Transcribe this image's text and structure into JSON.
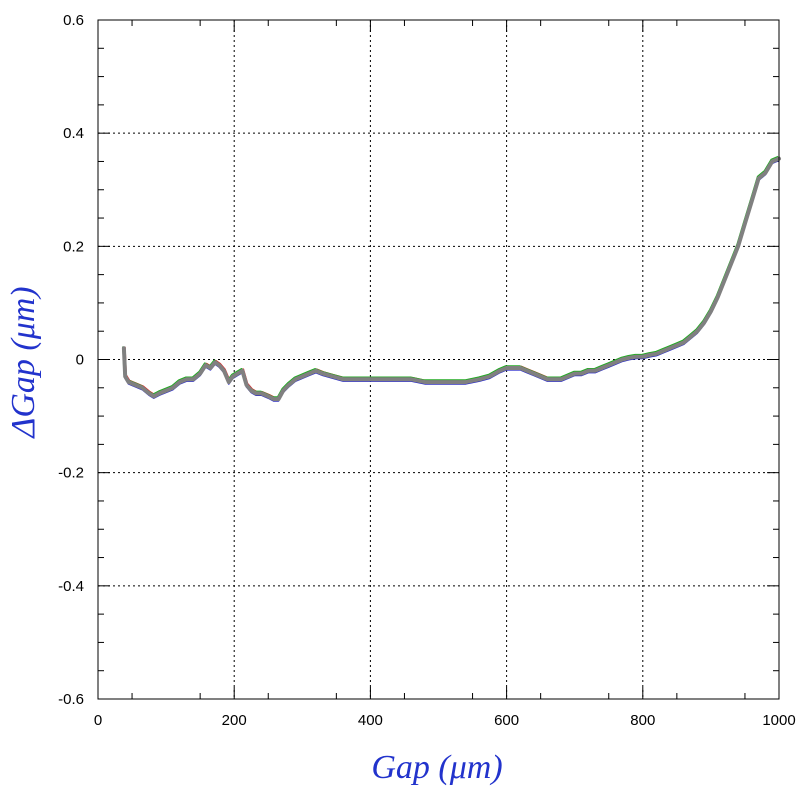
{
  "chart_data": {
    "type": "line",
    "xlabel": "Gap  (μm)",
    "ylabel": "ΔGap  (μm)",
    "xlim": [
      0,
      1000
    ],
    "ylim": [
      -0.6,
      0.6
    ],
    "x_ticks": [
      "0",
      "200",
      "400",
      "600",
      "800",
      "1000"
    ],
    "y_ticks": [
      "-0.6",
      "-0.4",
      "-0.2",
      "0",
      "0.2",
      "0.4",
      "0.6"
    ],
    "grid": true,
    "colors": {
      "axis_title": "#2233cc",
      "main_line": "#808080",
      "under_1": "#2222cc",
      "under_2": "#dd2222",
      "under_3": "#22aa22"
    },
    "series": [
      {
        "color": "#808080",
        "x": [
          38,
          40,
          45,
          55,
          65,
          75,
          82,
          90,
          100,
          110,
          120,
          130,
          140,
          150,
          158,
          165,
          172,
          178,
          185,
          192,
          198,
          205,
          212,
          218,
          225,
          232,
          240,
          250,
          258,
          265,
          272,
          280,
          290,
          300,
          310,
          320,
          330,
          345,
          360,
          380,
          400,
          420,
          440,
          460,
          480,
          500,
          520,
          540,
          560,
          575,
          590,
          600,
          610,
          620,
          630,
          640,
          650,
          660,
          670,
          680,
          690,
          700,
          710,
          720,
          730,
          740,
          750,
          760,
          770,
          780,
          790,
          800,
          810,
          820,
          830,
          840,
          850,
          860,
          870,
          880,
          890,
          900,
          910,
          920,
          930,
          940,
          950,
          960,
          970,
          980,
          990,
          1000
        ],
        "y": [
          0.02,
          -0.03,
          -0.04,
          -0.045,
          -0.05,
          -0.06,
          -0.065,
          -0.06,
          -0.055,
          -0.05,
          -0.04,
          -0.035,
          -0.035,
          -0.025,
          -0.01,
          -0.015,
          -0.005,
          -0.01,
          -0.02,
          -0.04,
          -0.03,
          -0.025,
          -0.02,
          -0.045,
          -0.055,
          -0.06,
          -0.06,
          -0.065,
          -0.07,
          -0.07,
          -0.055,
          -0.045,
          -0.035,
          -0.03,
          -0.025,
          -0.02,
          -0.025,
          -0.03,
          -0.035,
          -0.035,
          -0.035,
          -0.035,
          -0.035,
          -0.035,
          -0.04,
          -0.04,
          -0.04,
          -0.04,
          -0.035,
          -0.03,
          -0.02,
          -0.015,
          -0.015,
          -0.015,
          -0.02,
          -0.025,
          -0.03,
          -0.035,
          -0.035,
          -0.035,
          -0.03,
          -0.025,
          -0.025,
          -0.02,
          -0.02,
          -0.015,
          -0.01,
          -0.005,
          0.0,
          0.003,
          0.005,
          0.005,
          0.008,
          0.01,
          0.015,
          0.02,
          0.025,
          0.03,
          0.04,
          0.05,
          0.065,
          0.085,
          0.11,
          0.14,
          0.17,
          0.2,
          0.24,
          0.28,
          0.32,
          0.33,
          0.35,
          0.355
        ]
      }
    ]
  }
}
